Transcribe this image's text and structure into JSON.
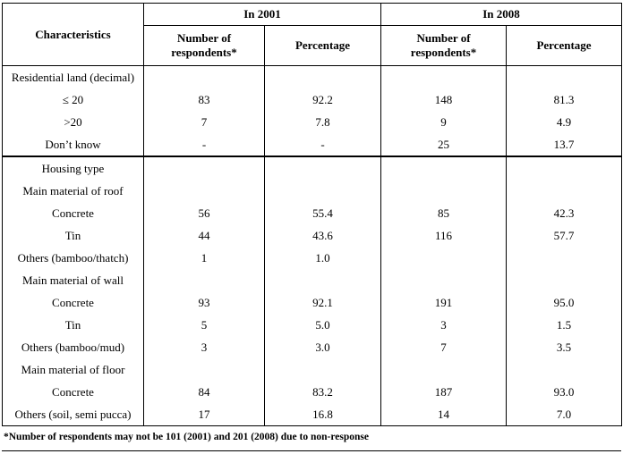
{
  "table": {
    "header": {
      "characteristics": "Characteristics",
      "group_2001": "In 2001",
      "group_2008": "In 2008",
      "number_label": "Number of respondents*",
      "percentage_label": "Percentage"
    },
    "rows": [
      {
        "label": "Residential land (decimal)",
        "n2001": "",
        "p2001": "",
        "n2008": "",
        "p2008": ""
      },
      {
        "label": "≤ 20",
        "n2001": "83",
        "p2001": "92.2",
        "n2008": "148",
        "p2008": "81.3"
      },
      {
        "label": ">20",
        "n2001": "7",
        "p2001": "7.8",
        "n2008": "9",
        "p2008": "4.9"
      },
      {
        "label": "Don’t know",
        "n2001": "-",
        "p2001": "-",
        "n2008": "25",
        "p2008": "13.7"
      },
      {
        "label": "Housing type",
        "n2001": "",
        "p2001": "",
        "n2008": "",
        "p2008": "",
        "section_break": true
      },
      {
        "label": "Main material of roof",
        "n2001": "",
        "p2001": "",
        "n2008": "",
        "p2008": ""
      },
      {
        "label": "Concrete",
        "n2001": "56",
        "p2001": "55.4",
        "n2008": "85",
        "p2008": "42.3"
      },
      {
        "label": "Tin",
        "n2001": "44",
        "p2001": "43.6",
        "n2008": "116",
        "p2008": "57.7"
      },
      {
        "label": "Others (bamboo/thatch)",
        "n2001": "1",
        "p2001": "1.0",
        "n2008": "",
        "p2008": ""
      },
      {
        "label": "Main material of wall",
        "n2001": "",
        "p2001": "",
        "n2008": "",
        "p2008": ""
      },
      {
        "label": "Concrete",
        "n2001": "93",
        "p2001": "92.1",
        "n2008": "191",
        "p2008": "95.0"
      },
      {
        "label": "Tin",
        "n2001": "5",
        "p2001": "5.0",
        "n2008": "3",
        "p2008": "1.5"
      },
      {
        "label": "Others (bamboo/mud)",
        "n2001": "3",
        "p2001": "3.0",
        "n2008": "7",
        "p2008": "3.5"
      },
      {
        "label": "Main material of floor",
        "n2001": "",
        "p2001": "",
        "n2008": "",
        "p2008": ""
      },
      {
        "label": "Concrete",
        "n2001": "84",
        "p2001": "83.2",
        "n2008": "187",
        "p2008": "93.0"
      },
      {
        "label": "Others (soil, semi pucca)",
        "n2001": "17",
        "p2001": "16.8",
        "n2008": "14",
        "p2008": "7.0"
      }
    ],
    "footnote": "*Number of respondents may not be 101 (2001) and 201 (2008) due to non-response"
  }
}
